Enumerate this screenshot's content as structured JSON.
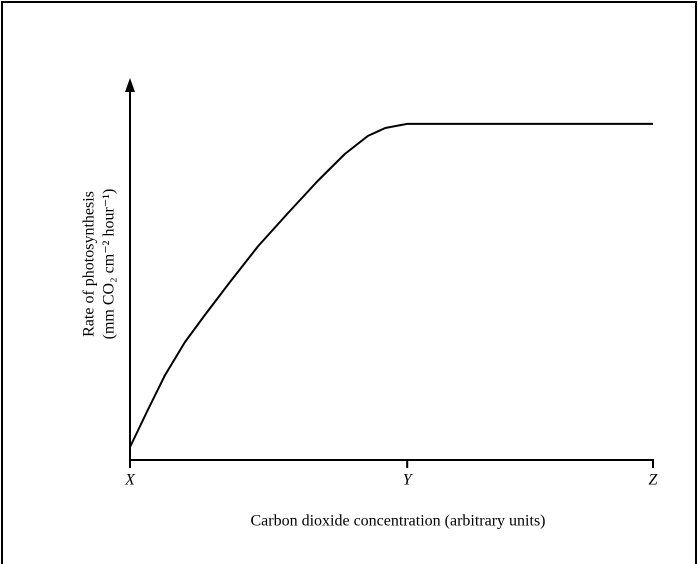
{
  "chart_data": {
    "type": "line",
    "xlabel": "Carbon dioxide concentration  (arbitrary units)",
    "ylabel": [
      "Rate of photosynthesis",
      "(mm CO₂ cm⁻² hour⁻¹)"
    ],
    "x": [
      0,
      3.4,
      6.7,
      10.5,
      14.3,
      19.1,
      24.5,
      30.2,
      35.9,
      41.1,
      45.5,
      48.8,
      53,
      100
    ],
    "series": [
      {
        "color": "#000000",
        "values": [
          2.1,
          12,
          21.3,
          30.1,
          37.3,
          46.1,
          55.7,
          64.5,
          73.1,
          80.3,
          85.1,
          87.2,
          88.3,
          88.3
        ]
      }
    ],
    "xlim": [
      0,
      100
    ],
    "ylim": [
      0,
      100
    ],
    "xticks": [
      {
        "value": 0,
        "label": "X"
      },
      {
        "value": 53,
        "label": "Y"
      },
      {
        "value": 100,
        "label": "Z"
      }
    ]
  }
}
